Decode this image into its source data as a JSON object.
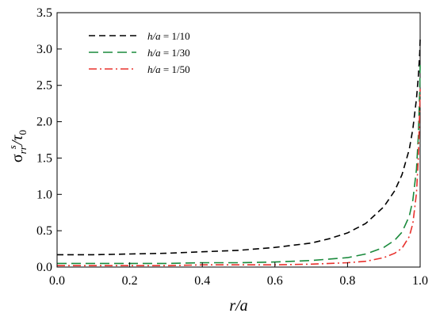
{
  "chart_data": {
    "type": "line",
    "xlabel": "r/a",
    "ylabel": {
      "base": "σ",
      "sub": "rr",
      "sup": "s",
      "rest": "/τ",
      "rest_sub": "0"
    },
    "xlim": [
      0.0,
      1.0
    ],
    "ylim": [
      0.0,
      3.5
    ],
    "x_ticks": [
      0.0,
      0.2,
      0.4,
      0.6,
      0.8,
      1.0
    ],
    "x_tick_labels": [
      "0.0",
      "0.2",
      "0.4",
      "0.6",
      "0.8",
      "1.0"
    ],
    "y_ticks": [
      0.0,
      0.5,
      1.0,
      1.5,
      2.0,
      2.5,
      3.0,
      3.5
    ],
    "y_tick_labels": [
      "0.0",
      "0.5",
      "1.0",
      "1.5",
      "2.0",
      "2.5",
      "3.0",
      "3.5"
    ],
    "grid": false,
    "legend_position": "top-left",
    "series": [
      {
        "name": "h/a = 1/10",
        "legend_label": {
          "italic": "h/a",
          "rest": " = 1/10"
        },
        "color": "#000000",
        "dash": "8,5",
        "x": [
          0.0,
          0.1,
          0.2,
          0.3,
          0.4,
          0.5,
          0.6,
          0.7,
          0.75,
          0.8,
          0.85,
          0.9,
          0.93,
          0.95,
          0.97,
          0.98,
          0.99,
          0.995,
          0.999,
          1.0
        ],
        "y": [
          0.17,
          0.17,
          0.18,
          0.19,
          0.21,
          0.23,
          0.27,
          0.33,
          0.39,
          0.47,
          0.6,
          0.83,
          1.05,
          1.27,
          1.62,
          1.9,
          2.32,
          2.62,
          2.95,
          3.13
        ]
      },
      {
        "name": "h/a = 1/30",
        "legend_label": {
          "italic": "h/a",
          "rest": " = 1/30"
        },
        "color": "#1a8a3c",
        "dash": "12,6",
        "x": [
          0.0,
          0.1,
          0.2,
          0.3,
          0.4,
          0.5,
          0.6,
          0.7,
          0.8,
          0.85,
          0.9,
          0.93,
          0.95,
          0.97,
          0.98,
          0.99,
          0.995,
          0.999,
          1.0
        ],
        "y": [
          0.05,
          0.05,
          0.05,
          0.05,
          0.06,
          0.06,
          0.07,
          0.09,
          0.13,
          0.18,
          0.27,
          0.37,
          0.48,
          0.7,
          0.92,
          1.35,
          1.8,
          2.45,
          2.78
        ]
      },
      {
        "name": "h/a = 1/50",
        "legend_label": {
          "italic": "h/a",
          "rest": " = 1/50"
        },
        "color": "#e8322d",
        "dash": "10,4,2,4",
        "x": [
          0.0,
          0.1,
          0.2,
          0.3,
          0.4,
          0.5,
          0.6,
          0.7,
          0.8,
          0.85,
          0.9,
          0.93,
          0.95,
          0.97,
          0.98,
          0.99,
          0.995,
          0.999,
          1.0
        ],
        "y": [
          0.02,
          0.02,
          0.02,
          0.02,
          0.03,
          0.03,
          0.03,
          0.04,
          0.06,
          0.08,
          0.13,
          0.19,
          0.26,
          0.42,
          0.6,
          1.02,
          1.5,
          2.2,
          2.45
        ]
      }
    ]
  }
}
